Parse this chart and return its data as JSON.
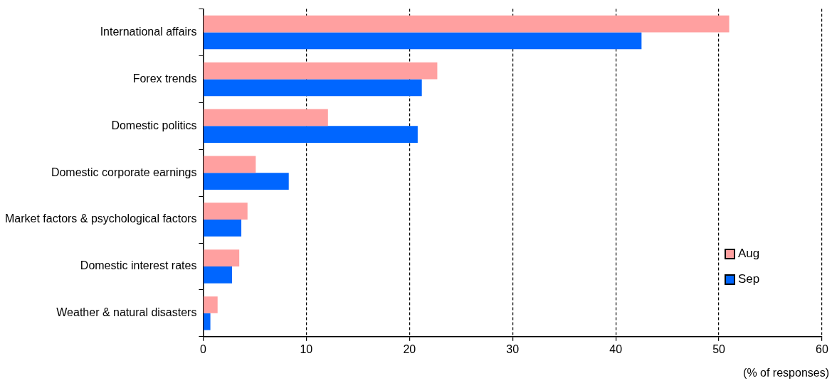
{
  "chart_data": {
    "type": "bar",
    "orientation": "horizontal",
    "xlabel": "(% of responses)",
    "categories": [
      "International affairs",
      "Forex trends",
      "Domestic politics",
      "Domestic corporate earnings",
      "Market factors & psychological factors",
      "Domestic interest rates",
      "Weather & natural disasters"
    ],
    "series": [
      {
        "name": "Aug",
        "color": "#ffa0a0",
        "values": [
          51.0,
          22.7,
          12.1,
          5.1,
          4.3,
          3.5,
          1.4
        ]
      },
      {
        "name": "Sep",
        "color": "#0066ff",
        "values": [
          42.5,
          21.2,
          20.8,
          8.3,
          3.7,
          2.8,
          0.7
        ]
      }
    ],
    "xlim": [
      0,
      60
    ],
    "xticks": [
      0,
      10,
      20,
      30,
      40,
      50,
      60
    ],
    "grid": "x",
    "legend": "right",
    "line_style": "dashed"
  }
}
